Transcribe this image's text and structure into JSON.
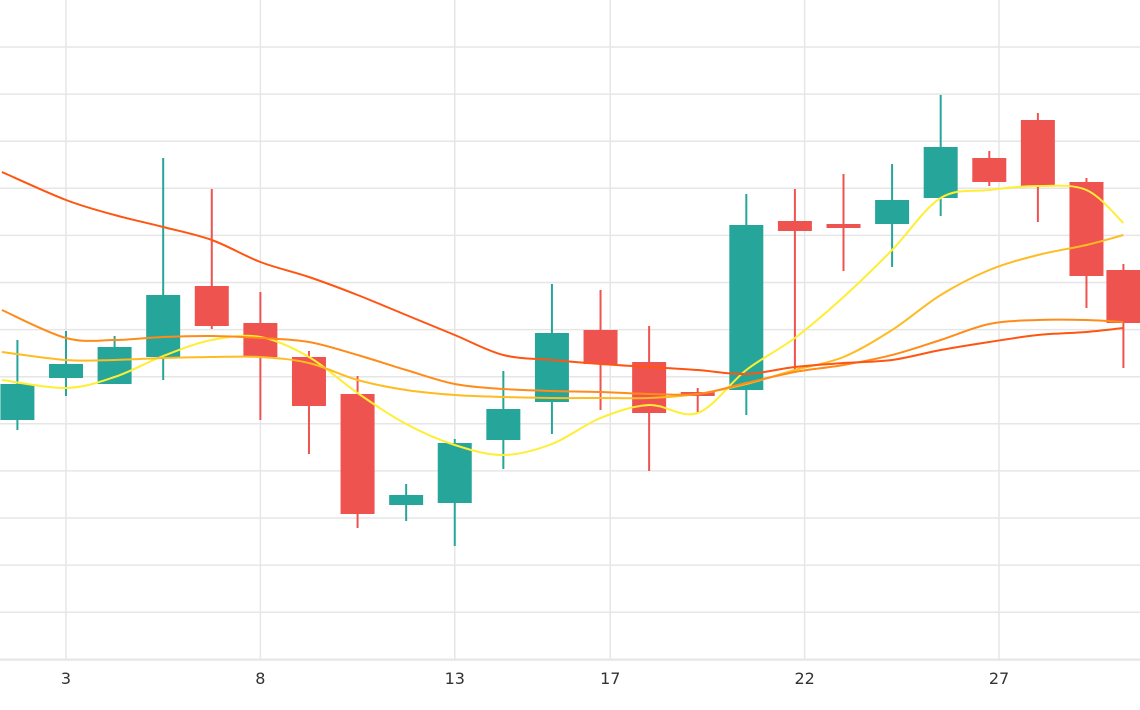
{
  "chart_data": {
    "type": "candlestick",
    "x_tick_labels": [
      {
        "x": 3,
        "label": "3"
      },
      {
        "x": 8,
        "label": "8"
      },
      {
        "x": 13,
        "label": "13"
      },
      {
        "x": 17,
        "label": "17"
      },
      {
        "x": 22,
        "label": "22"
      },
      {
        "x": 27,
        "label": "27"
      }
    ],
    "x_range": [
      1.35,
      30.2
    ],
    "y_range": [
      0,
      660
    ],
    "y_axis_labels_visible": false,
    "grid": true,
    "colors": {
      "up": "#26a69a",
      "down": "#ef5350",
      "grid": "#e6e6e6",
      "axis_text": "#333333",
      "ma_lines": [
        "#ffee33",
        "#ffbb22",
        "#ff8c1a",
        "#ff5511"
      ]
    },
    "candles": [
      {
        "x": 1.75,
        "open": 240,
        "close": 276,
        "high": 320,
        "low": 230
      },
      {
        "x": 3.0,
        "open": 282,
        "close": 296,
        "high": 329,
        "low": 264
      },
      {
        "x": 4.25,
        "open": 276,
        "close": 313,
        "high": 324,
        "low": 276
      },
      {
        "x": 5.5,
        "open": 303,
        "close": 365,
        "high": 502,
        "low": 280
      },
      {
        "x": 6.75,
        "open": 374,
        "close": 334,
        "high": 471,
        "low": 331
      },
      {
        "x": 8.0,
        "open": 337,
        "close": 303,
        "high": 368,
        "low": 240
      },
      {
        "x": 9.25,
        "open": 303,
        "close": 254,
        "high": 309,
        "low": 206
      },
      {
        "x": 10.5,
        "open": 266,
        "close": 146,
        "high": 284,
        "low": 132
      },
      {
        "x": 11.75,
        "open": 155,
        "close": 165,
        "high": 176,
        "low": 139
      },
      {
        "x": 13.0,
        "open": 157,
        "close": 217,
        "high": 221,
        "low": 114
      },
      {
        "x": 14.25,
        "open": 220,
        "close": 251,
        "high": 289,
        "low": 191
      },
      {
        "x": 15.5,
        "open": 258,
        "close": 327,
        "high": 376,
        "low": 226
      },
      {
        "x": 16.75,
        "open": 330,
        "close": 296,
        "high": 370,
        "low": 250
      },
      {
        "x": 18.0,
        "open": 298,
        "close": 247,
        "high": 334,
        "low": 189
      },
      {
        "x": 19.25,
        "open": 268,
        "close": 264,
        "high": 272,
        "low": 248
      },
      {
        "x": 20.5,
        "open": 270,
        "close": 435,
        "high": 466,
        "low": 245
      },
      {
        "x": 21.75,
        "open": 439,
        "close": 429,
        "high": 471,
        "low": 290
      },
      {
        "x": 23.0,
        "open": 436,
        "close": 432,
        "high": 486,
        "low": 389
      },
      {
        "x": 24.25,
        "open": 436,
        "close": 460,
        "high": 496,
        "low": 393
      },
      {
        "x": 25.5,
        "open": 462,
        "close": 513,
        "high": 565,
        "low": 444
      },
      {
        "x": 26.75,
        "open": 502,
        "close": 478,
        "high": 509,
        "low": 474
      },
      {
        "x": 28.0,
        "open": 540,
        "close": 474,
        "high": 547,
        "low": 438
      },
      {
        "x": 29.25,
        "open": 478,
        "close": 384,
        "high": 482,
        "low": 352
      },
      {
        "x": 30.2,
        "open": 390,
        "close": 337,
        "high": 396,
        "low": 292
      }
    ],
    "moving_averages": [
      {
        "period": 5,
        "values": [
          [
            1.35,
            280
          ],
          [
            3.0,
            272
          ],
          [
            4.25,
            283
          ],
          [
            5.5,
            304
          ],
          [
            6.75,
            320
          ],
          [
            8.0,
            323
          ],
          [
            9.25,
            303
          ],
          [
            10.5,
            267
          ],
          [
            11.75,
            236
          ],
          [
            13.0,
            215
          ],
          [
            14.25,
            205
          ],
          [
            15.5,
            216
          ],
          [
            16.75,
            242
          ],
          [
            18.0,
            255
          ],
          [
            19.25,
            247
          ],
          [
            20.5,
            290
          ],
          [
            21.75,
            322
          ],
          [
            23.0,
            363
          ],
          [
            24.25,
            410
          ],
          [
            25.5,
            462
          ],
          [
            26.75,
            470
          ],
          [
            28.0,
            474
          ],
          [
            29.25,
            470
          ],
          [
            30.2,
            437
          ]
        ]
      },
      {
        "period": 10,
        "values": [
          [
            1.35,
            308
          ],
          [
            3.0,
            300
          ],
          [
            4.25,
            300
          ],
          [
            5.5,
            302
          ],
          [
            6.75,
            303
          ],
          [
            8.0,
            303
          ],
          [
            9.25,
            297
          ],
          [
            10.5,
            280
          ],
          [
            11.75,
            270
          ],
          [
            13.0,
            265
          ],
          [
            14.25,
            263
          ],
          [
            15.5,
            262
          ],
          [
            16.75,
            262
          ],
          [
            18.0,
            262
          ],
          [
            19.25,
            266
          ],
          [
            20.5,
            276
          ],
          [
            21.75,
            290
          ],
          [
            23.0,
            303
          ],
          [
            24.25,
            330
          ],
          [
            25.5,
            365
          ],
          [
            26.75,
            390
          ],
          [
            28.0,
            405
          ],
          [
            29.25,
            415
          ],
          [
            30.2,
            425
          ]
        ]
      },
      {
        "period": 20,
        "values": [
          [
            1.35,
            350
          ],
          [
            3.0,
            322
          ],
          [
            4.25,
            320
          ],
          [
            5.5,
            323
          ],
          [
            6.75,
            324
          ],
          [
            8.0,
            322
          ],
          [
            9.25,
            318
          ],
          [
            10.5,
            305
          ],
          [
            11.75,
            290
          ],
          [
            13.0,
            276
          ],
          [
            14.25,
            271
          ],
          [
            15.5,
            269
          ],
          [
            16.75,
            268
          ],
          [
            18.0,
            266
          ],
          [
            19.25,
            266
          ],
          [
            20.5,
            277
          ],
          [
            21.75,
            288
          ],
          [
            23.0,
            295
          ],
          [
            24.25,
            305
          ],
          [
            25.5,
            320
          ],
          [
            26.75,
            336
          ],
          [
            28.0,
            340
          ],
          [
            29.25,
            340
          ],
          [
            30.2,
            338
          ]
        ]
      },
      {
        "period": 30,
        "values": [
          [
            1.35,
            488
          ],
          [
            3.0,
            460
          ],
          [
            4.25,
            445
          ],
          [
            5.5,
            433
          ],
          [
            6.75,
            420
          ],
          [
            8.0,
            398
          ],
          [
            9.25,
            383
          ],
          [
            10.5,
            365
          ],
          [
            11.75,
            345
          ],
          [
            13.0,
            325
          ],
          [
            14.25,
            305
          ],
          [
            15.5,
            300
          ],
          [
            16.75,
            296
          ],
          [
            18.0,
            293
          ],
          [
            19.25,
            290
          ],
          [
            20.5,
            286
          ],
          [
            21.75,
            293
          ],
          [
            23.0,
            297
          ],
          [
            24.25,
            300
          ],
          [
            25.5,
            310
          ],
          [
            26.75,
            318
          ],
          [
            28.0,
            325
          ],
          [
            29.25,
            328
          ],
          [
            30.2,
            332
          ]
        ]
      }
    ]
  }
}
